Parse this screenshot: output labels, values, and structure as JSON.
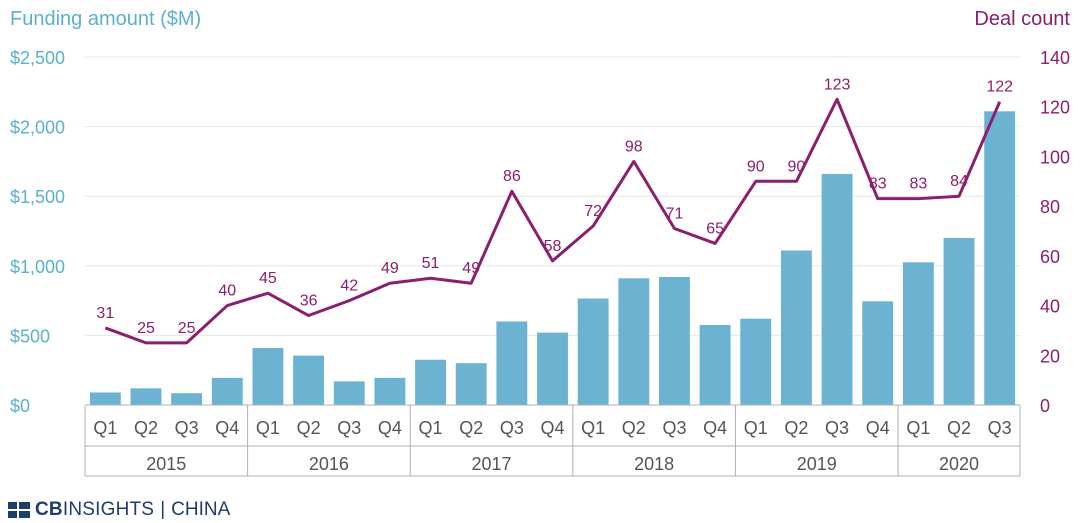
{
  "left_axis_title": "Funding amount ($M)",
  "right_axis_title": "Deal count",
  "logo": {
    "brand_bold": "CB",
    "brand_light": "INSIGHTS",
    "separator": "|",
    "suffix": "CHINA"
  },
  "colors": {
    "bar": "#6cb3d1",
    "line": "#8a1f6e",
    "left_axis": "#5ab0cf",
    "right_axis": "#8a1f6e",
    "grid": "#e6e6e6",
    "divider": "#b0b0b0"
  },
  "chart_data": {
    "type": "bar",
    "categories": [
      "Q1",
      "Q2",
      "Q3",
      "Q4",
      "Q1",
      "Q2",
      "Q3",
      "Q4",
      "Q1",
      "Q2",
      "Q3",
      "Q4",
      "Q1",
      "Q2",
      "Q3",
      "Q4",
      "Q1",
      "Q2",
      "Q3",
      "Q4",
      "Q1",
      "Q2",
      "Q3"
    ],
    "year_groups": [
      {
        "label": "2015",
        "count": 4
      },
      {
        "label": "2016",
        "count": 4
      },
      {
        "label": "2017",
        "count": 4
      },
      {
        "label": "2018",
        "count": 4
      },
      {
        "label": "2019",
        "count": 4
      },
      {
        "label": "2020",
        "count": 3
      }
    ],
    "series": [
      {
        "name": "Funding amount ($M)",
        "type": "bar",
        "axis": "left",
        "values": [
          90,
          120,
          85,
          195,
          410,
          355,
          170,
          195,
          325,
          300,
          600,
          520,
          765,
          910,
          920,
          575,
          620,
          1110,
          1660,
          745,
          1025,
          1200,
          2110
        ]
      },
      {
        "name": "Deal count",
        "type": "line",
        "axis": "right",
        "values": [
          31,
          25,
          25,
          40,
          45,
          36,
          42,
          49,
          51,
          49,
          86,
          58,
          72,
          98,
          71,
          65,
          90,
          90,
          123,
          83,
          83,
          84,
          122
        ]
      }
    ],
    "y_left": {
      "ticks": [
        "$0",
        "$500",
        "$1,000",
        "$1,500",
        "$2,000",
        "$2,500"
      ],
      "min": 0,
      "max": 2500
    },
    "y_right": {
      "ticks": [
        "0",
        "20",
        "40",
        "60",
        "80",
        "100",
        "120",
        "140"
      ],
      "min": 0,
      "max": 140
    },
    "grid": true
  }
}
